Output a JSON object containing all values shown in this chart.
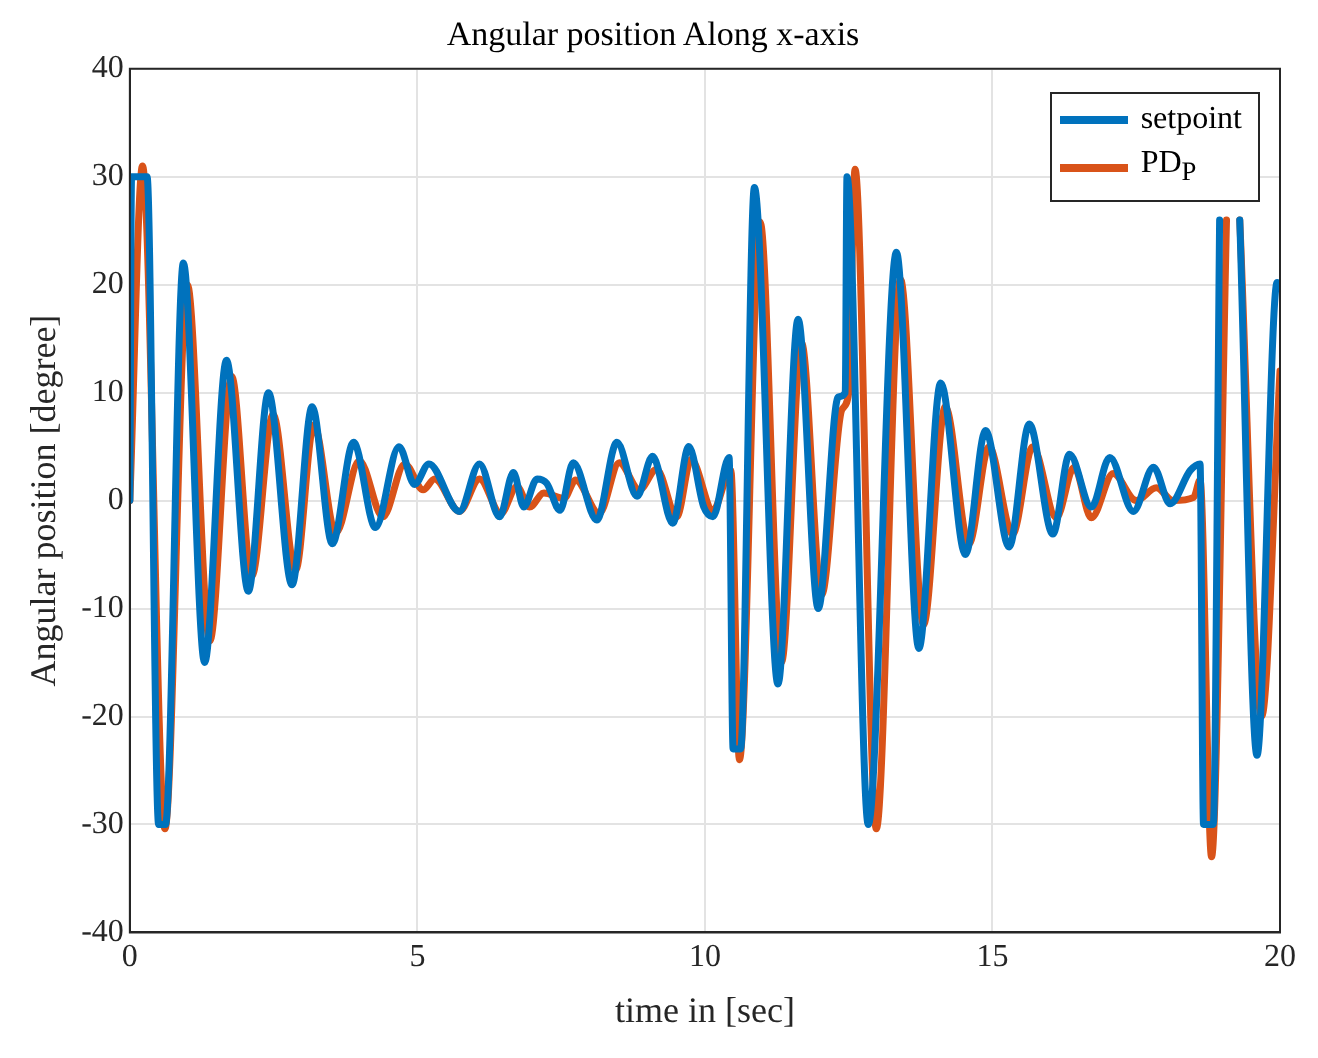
{
  "chart_data": {
    "type": "line",
    "title": "Angular position Along x-axis",
    "xlabel": "time in [sec]",
    "ylabel": "Angular position [degree]",
    "xlim": [
      0,
      20
    ],
    "xticks": [
      0,
      5,
      10,
      15,
      20
    ],
    "ylim": [
      -40,
      40
    ],
    "yticks": [
      -40,
      -30,
      -20,
      -10,
      0,
      10,
      20,
      30,
      40
    ],
    "grid": true,
    "legend": "top right",
    "marker": "none",
    "line_style": "solid",
    "series": [
      {
        "name": "setpoint",
        "color": "#0072bd",
        "x": [
          0,
          0.03,
          0.3,
          0.5,
          0.62,
          0.93,
          1.3,
          1.68,
          2.06,
          2.41,
          2.82,
          3.17,
          3.52,
          3.89,
          4.27,
          4.68,
          4.95,
          5.2,
          5.73,
          6.08,
          6.43,
          6.67,
          6.85,
          7.08,
          7.25,
          7.48,
          7.71,
          8.12,
          8.47,
          8.82,
          9.09,
          9.44,
          9.72,
          9.98,
          10.14,
          10.42,
          10.49,
          10.62,
          10.86,
          11.27,
          11.62,
          11.97,
          12.32,
          12.44,
          12.47,
          12.84,
          13.33,
          13.72,
          14.1,
          14.53,
          14.88,
          15.29,
          15.64,
          16.05,
          16.34,
          16.72,
          17.04,
          17.45,
          17.8,
          18.09,
          18.44,
          18.61,
          18.67,
          18.84,
          18.95,
          19.1,
          19.3,
          19.6,
          19.95,
          19.98
        ],
        "values": [
          0,
          30,
          30,
          -30,
          -30,
          22,
          -15,
          13,
          -8.4,
          10,
          -7.8,
          8.7,
          -4,
          5.4,
          -2.5,
          5,
          1.5,
          3.4,
          -1,
          3.4,
          -1.5,
          2.6,
          -0.6,
          2,
          1.6,
          -0.9,
          3.5,
          -1.8,
          5.4,
          0.4,
          4.1,
          -2.1,
          5,
          -0.6,
          -1.5,
          4,
          -23,
          -23,
          29,
          -17,
          16.8,
          -10,
          9.6,
          10,
          30,
          -30,
          23,
          -13.7,
          10.9,
          -5,
          6.5,
          -4.3,
          7.1,
          -3.1,
          4.3,
          -0.6,
          4,
          -1,
          3.1,
          -0.3,
          2.8,
          3.4,
          -30,
          -30,
          26,
          null,
          26,
          -23.6,
          20.2,
          20
        ]
      },
      {
        "name": "PD$_{P}$",
        "color": "#d95319",
        "x": [
          0,
          0.22,
          0.61,
          1,
          1.39,
          1.77,
          2.12,
          2.49,
          2.88,
          3.2,
          3.58,
          3.99,
          4.4,
          4.78,
          5.1,
          5.3,
          5.73,
          6.08,
          6.45,
          6.73,
          6.95,
          7.2,
          7.55,
          7.75,
          8.16,
          8.51,
          8.86,
          9.16,
          9.51,
          9.76,
          10.14,
          10.45,
          10.6,
          10.96,
          11.33,
          11.68,
          12.03,
          12.38,
          12.5,
          12.61,
          12.98,
          13.4,
          13.8,
          14.18,
          14.59,
          14.94,
          15.35,
          15.7,
          16.11,
          16.42,
          16.72,
          17.1,
          17.5,
          17.85,
          18.14,
          18.5,
          18.61,
          18.81,
          19.07,
          19.15,
          19.3,
          19.68,
          20
        ],
        "values": [
          0,
          31,
          -30.4,
          20,
          -13,
          11.5,
          -7,
          8,
          -6.5,
          7,
          -3,
          3.7,
          -1.5,
          3.4,
          1,
          2,
          -1,
          2,
          -1.2,
          1.3,
          -0.6,
          0.7,
          0.2,
          1.9,
          -1.2,
          3.5,
          1,
          2.9,
          -1.5,
          3.8,
          -0.9,
          2.8,
          -24,
          25.8,
          -15,
          14.6,
          -8.7,
          8.4,
          10,
          30.7,
          -30.4,
          20.5,
          -11.5,
          8.7,
          -4,
          5,
          -3.1,
          5,
          -1.6,
          3.1,
          -1.6,
          2.5,
          0,
          1.2,
          0,
          0.3,
          1.9,
          -33,
          26,
          null,
          26,
          -20,
          12
        ]
      }
    ]
  }
}
